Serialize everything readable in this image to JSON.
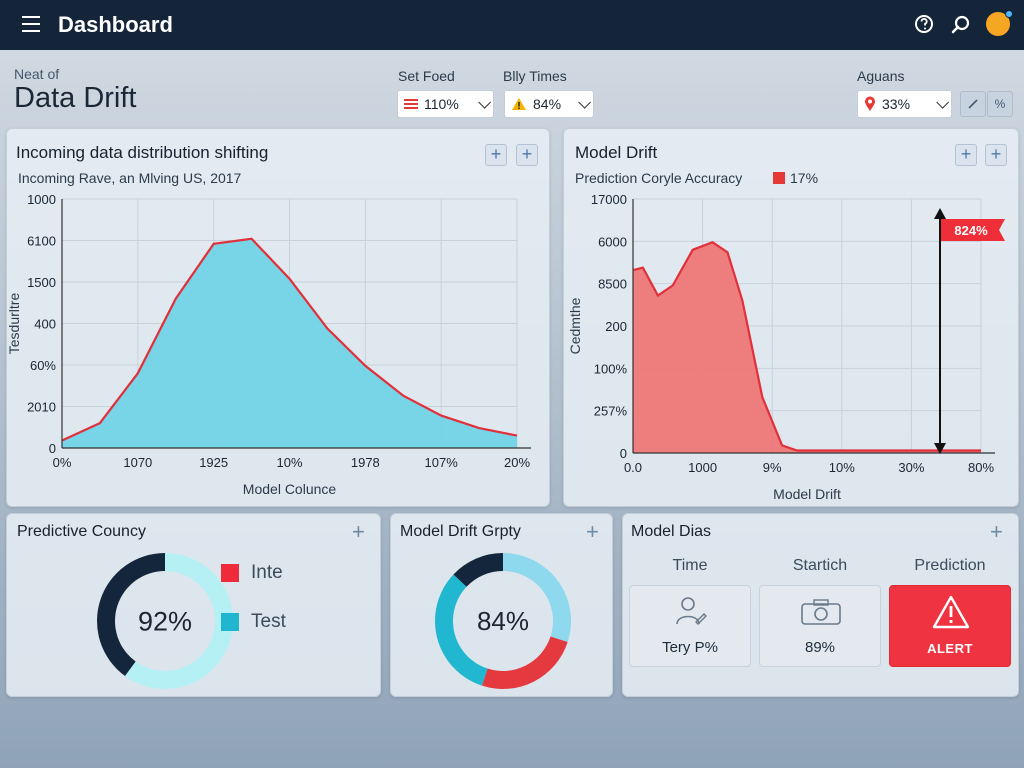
{
  "topbar": {
    "title": "Dashboard",
    "icons": [
      "menu-icon",
      "help-icon",
      "search-icon",
      "avatar"
    ]
  },
  "header": {
    "subtitle": "Neat of",
    "title": "Data Drift"
  },
  "filters": [
    {
      "label": "Set Foed",
      "value": "110%",
      "icon": "bars-icon",
      "icon_color": "#e53935"
    },
    {
      "label": "Blly Times",
      "value": "84%",
      "icon": "warning-icon",
      "icon_color": "#f5b400"
    },
    {
      "label": "Aguans",
      "value": "33%",
      "icon": "location-pin-icon",
      "icon_color": "#e53935"
    }
  ],
  "panels": {
    "incoming": {
      "title": "Incoming data distribution shifting",
      "subtitle": "Incoming Rave, an Mlving US, 2017",
      "chart_data": {
        "type": "area",
        "title": "Incoming data distribution shifting",
        "subtitle": "Incoming Rave, an Mlving US, 2017",
        "xlabel": "Model Colunce",
        "ylabel": "Tesdurltre",
        "x_tick_labels": [
          "0%",
          "1070",
          "1925",
          "10%",
          "1978",
          "107%",
          "20%"
        ],
        "y_tick_labels": [
          "1000",
          "6100",
          "1500",
          "400",
          "60%",
          "2010",
          "0"
        ],
        "x": [
          0,
          0.5,
          1,
          1.5,
          2,
          2.5,
          3,
          3.5,
          4,
          4.5,
          5,
          5.5,
          6
        ],
        "values": [
          0.03,
          0.1,
          0.3,
          0.6,
          0.82,
          0.84,
          0.68,
          0.48,
          0.33,
          0.21,
          0.13,
          0.08,
          0.05
        ],
        "series_color": "#6fd3e6",
        "line_color": "#e0303a",
        "grid": true
      }
    },
    "drift": {
      "title": "Model Drift",
      "subtitle": "Prediction Coryle Accuracy",
      "legend_value": "17%",
      "legend_color": "#e53935",
      "marker_label": "824%",
      "chart_data": {
        "type": "area",
        "title": "Model Drift",
        "subtitle": "Prediction Coryle Accuracy",
        "xlabel": "Model Drift",
        "ylabel": "Cedmthe",
        "x_tick_labels": [
          "0.0",
          "1000",
          "9%",
          "10%",
          "30%",
          "80%"
        ],
        "y_tick_labels": [
          "17000",
          "6000",
          "8500",
          "200",
          "100%",
          "257%",
          "0"
        ],
        "x": [
          0,
          0.2,
          0.5,
          0.8,
          1.2,
          1.6,
          1.9,
          2.2,
          2.6,
          3.0,
          3.3,
          3.6,
          4.0,
          4.5,
          5.0,
          5.5,
          6.0,
          6.5,
          7.0
        ],
        "values": [
          0.72,
          0.73,
          0.62,
          0.66,
          0.8,
          0.83,
          0.79,
          0.6,
          0.22,
          0.03,
          0.01,
          0.01,
          0.01,
          0.01,
          0.01,
          0.01,
          0.01,
          0.01,
          0.01
        ],
        "series_color": "#ef7474",
        "line_color": "#e0303a",
        "grid": true
      }
    },
    "predictive": {
      "title": "Predictive Councy",
      "center_label": "92%",
      "legend": [
        {
          "name": "Inte",
          "color": "#ef2b3b"
        },
        {
          "name": "Test",
          "color": "#21b6cf"
        }
      ],
      "chart_data": {
        "type": "pie",
        "center_label": "92%",
        "slices": [
          {
            "value": 60,
            "color": "#b5f0f5"
          },
          {
            "value": 40,
            "color": "#14263b"
          }
        ]
      }
    },
    "drift_donut": {
      "title": "Model Drift Grpty",
      "center_label": "84%",
      "chart_data": {
        "type": "pie",
        "center_label": "84%",
        "slices": [
          {
            "value": 30,
            "color": "#8fd9ef"
          },
          {
            "value": 25,
            "color": "#e53940"
          },
          {
            "value": 32,
            "color": "#22b7d0"
          },
          {
            "value": 13,
            "color": "#14263b"
          }
        ]
      }
    },
    "bias": {
      "title": "Model Dias",
      "columns": [
        {
          "header": "Time",
          "tile_label": "Tery P%",
          "icon": "user-edit-icon"
        },
        {
          "header": "Startich",
          "tile_label": "89%",
          "icon": "camera-icon"
        },
        {
          "header": "Prediction",
          "tile_label": "ALERT",
          "icon": "warning-icon"
        }
      ]
    }
  }
}
